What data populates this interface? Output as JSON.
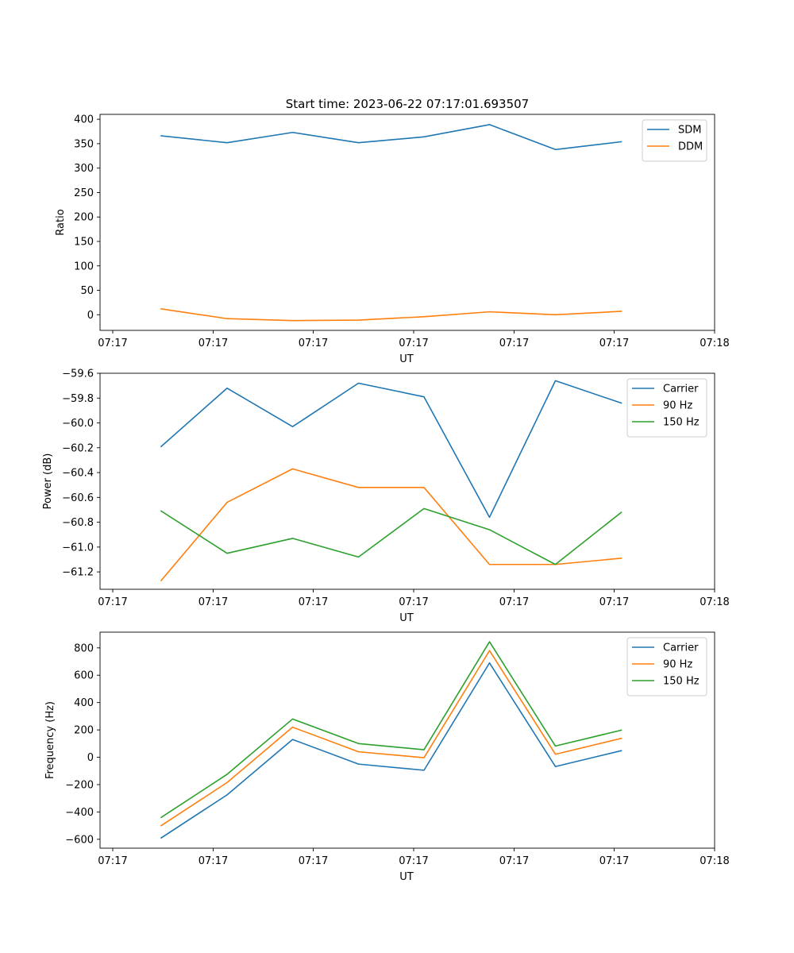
{
  "figure": {
    "title": "Start time: 2023-06-22 07:17:01.693507"
  },
  "chart_data": [
    {
      "type": "line",
      "xlabel": "UT",
      "ylabel": "Ratio",
      "x_tick_labels": [
        "07:17",
        "07:17",
        "07:17",
        "07:17",
        "07:17",
        "07:17",
        "07:18"
      ],
      "yticks": [
        0,
        50,
        100,
        150,
        200,
        250,
        300,
        350,
        400
      ],
      "ylim": [
        -32,
        410
      ],
      "grid": false,
      "legend_position": "top-right",
      "series": [
        {
          "name": "SDM",
          "color": "#1f77b4",
          "values": [
            366,
            352,
            373,
            352,
            364,
            389,
            338,
            354
          ]
        },
        {
          "name": "DDM",
          "color": "#ff7f0e",
          "values": [
            12,
            -8,
            -12,
            -11,
            -4,
            6,
            0,
            7
          ]
        }
      ]
    },
    {
      "type": "line",
      "xlabel": "UT",
      "ylabel": "Power (dB)",
      "x_tick_labels": [
        "07:17",
        "07:17",
        "07:17",
        "07:17",
        "07:17",
        "07:17",
        "07:18"
      ],
      "yticks": [
        -61.2,
        -61.0,
        -60.8,
        -60.6,
        -60.4,
        -60.2,
        -60.0,
        -59.8,
        -59.6
      ],
      "ytick_labels": [
        "−61.2",
        "−61.0",
        "−60.8",
        "−60.6",
        "−60.4",
        "−60.2",
        "−60.0",
        "−59.8",
        "−59.6"
      ],
      "ylim": [
        -61.34,
        -59.6
      ],
      "grid": false,
      "legend_position": "top-right",
      "series": [
        {
          "name": "Carrier",
          "color": "#1f77b4",
          "values": [
            -60.19,
            -59.72,
            -60.03,
            -59.68,
            -59.79,
            -60.76,
            -59.66,
            -59.84
          ]
        },
        {
          "name": "90 Hz",
          "color": "#ff7f0e",
          "values": [
            -61.27,
            -60.64,
            -60.37,
            -60.52,
            -60.52,
            -61.14,
            -61.14,
            -61.09
          ]
        },
        {
          "name": "150 Hz",
          "color": "#2ca02c",
          "values": [
            -60.71,
            -61.05,
            -60.93,
            -61.08,
            -60.69,
            -60.86,
            -61.14,
            -60.72
          ]
        }
      ]
    },
    {
      "type": "line",
      "xlabel": "UT",
      "ylabel": "Frequency (Hz)",
      "x_tick_labels": [
        "07:17",
        "07:17",
        "07:17",
        "07:17",
        "07:17",
        "07:17",
        "07:18"
      ],
      "yticks": [
        -600,
        -400,
        -200,
        0,
        200,
        400,
        600,
        800
      ],
      "ytick_labels": [
        "−600",
        "−400",
        "−200",
        "0",
        "200",
        "400",
        "600",
        "800"
      ],
      "ylim": [
        -665,
        915
      ],
      "grid": false,
      "legend_position": "top-right",
      "series": [
        {
          "name": "Carrier",
          "color": "#1f77b4",
          "values": [
            -590,
            -275,
            130,
            -50,
            -95,
            690,
            -68,
            48
          ]
        },
        {
          "name": "90 Hz",
          "color": "#ff7f0e",
          "values": [
            -500,
            -185,
            220,
            40,
            -3,
            780,
            22,
            138
          ]
        },
        {
          "name": "150 Hz",
          "color": "#2ca02c",
          "values": [
            -440,
            -125,
            280,
            100,
            55,
            845,
            82,
            198
          ]
        }
      ]
    }
  ]
}
